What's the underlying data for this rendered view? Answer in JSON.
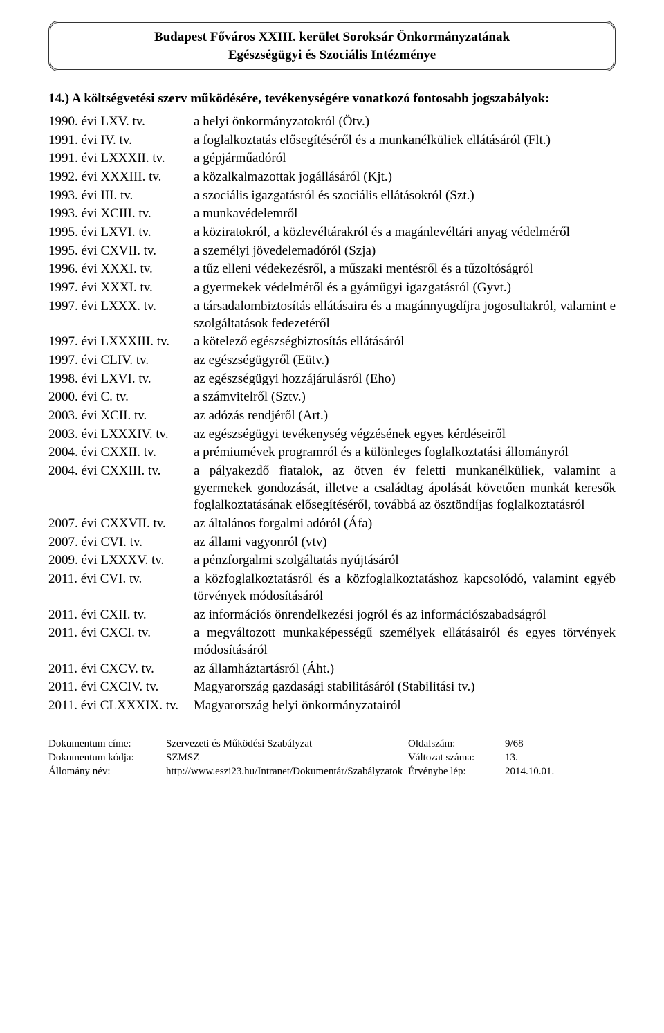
{
  "header": {
    "line1": "Budapest Főváros XXIII. kerület Soroksár Önkormányzatának",
    "line2": "Egészségügyi és Szociális Intézménye"
  },
  "section": {
    "heading": "14.) A költségvetési szerv működésére, tevékenységére vonatkozó fontosabb jogszabályok:"
  },
  "laws": [
    {
      "year": "1990. évi LXV. tv.",
      "desc": "a helyi önkormányzatokról (Ötv.)"
    },
    {
      "year": "1991. évi IV. tv.",
      "desc": "a foglalkoztatás elősegítéséről és a munkanélküliek ellátásáról (Flt.)"
    },
    {
      "year": "1991. évi LXXXII. tv.",
      "desc": "a gépjárműadóról"
    },
    {
      "year": "1992. évi XXXIII. tv.",
      "desc": "a közalkalmazottak jogállásáról (Kjt.)"
    },
    {
      "year": "1993. évi III. tv.",
      "desc": "a szociális igazgatásról és szociális ellátásokról (Szt.)"
    },
    {
      "year": "1993. évi XCIII. tv.",
      "desc": "a munkavédelemről"
    },
    {
      "year": "1995. évi LXVI. tv.",
      "desc": "a köziratokról, a közlevéltárakról és a magánlevéltári anyag védelméről"
    },
    {
      "year": "1995. évi CXVII. tv.",
      "desc": "a személyi jövedelemadóról (Szja)"
    },
    {
      "year": "1996. évi XXXI. tv.",
      "desc": "a tűz elleni védekezésről, a műszaki mentésről és a tűzoltóságról"
    },
    {
      "year": "1997. évi XXXI. tv.",
      "desc": "a gyermekek védelméről és a gyámügyi igazgatásról (Gyvt.)"
    },
    {
      "year": "1997. évi LXXX. tv.",
      "desc": "a társadalombiztosítás ellátásaira és a magánnyugdíjra jogosultakról, valamint e szolgáltatások fedezetéről"
    },
    {
      "year": "1997. évi LXXXIII. tv.",
      "desc": "a kötelező egészségbiztosítás ellátásáról"
    },
    {
      "year": "1997. évi CLIV. tv.",
      "desc": "az egészségügyről (Eütv.)"
    },
    {
      "year": "1998. évi LXVI. tv.",
      "desc": "az egészségügyi hozzájárulásról (Eho)"
    },
    {
      "year": "2000. évi C. tv.",
      "desc": "a számvitelről (Sztv.)"
    },
    {
      "year": "2003. évi XCII. tv.",
      "desc": "az adózás rendjéről (Art.)"
    },
    {
      "year": "2003. évi LXXXIV. tv.",
      "desc": "az egészségügyi tevékenység végzésének egyes kérdéseiről"
    },
    {
      "year": "2004. évi CXXII. tv.",
      "desc": "a prémiumévek programról és a különleges foglalkoztatási állományról"
    },
    {
      "year": "2004. évi CXXIII. tv.",
      "desc": "a pályakezdő fiatalok, az ötven év feletti munkanélküliek, valamint a gyermekek gondozását, illetve a családtag ápolását követően munkát keresők foglalkoztatásának elősegítéséről, továbbá az ösztöndíjas foglalkoztatásról"
    },
    {
      "year": "2007. évi CXXVII. tv.",
      "desc": "az általános forgalmi adóról (Áfa)"
    },
    {
      "year": "2007. évi CVI. tv.",
      "desc": "az állami vagyonról (vtv)"
    },
    {
      "year": "2009. évi LXXXV. tv.",
      "desc": "a pénzforgalmi szolgáltatás nyújtásáról"
    },
    {
      "year": "2011. évi CVI. tv.",
      "desc": "a közfoglalkoztatásról és a közfoglalkoztatáshoz kapcsolódó, valamint egyéb törvények módosításáról"
    },
    {
      "year": "2011. évi CXII. tv.",
      "desc": "az információs önrendelkezési jogról és az információszabadságról"
    },
    {
      "year": "2011. évi CXCI. tv.",
      "desc": "a megváltozott munkaképességű személyek ellátásairól és egyes törvények módosításáról"
    },
    {
      "year": "2011. évi CXCV. tv.",
      "desc": "az államháztartásról (Áht.)"
    },
    {
      "year": "2011. évi CXCIV. tv.",
      "desc": "Magyarország gazdasági stabilitásáról (Stabilitási tv.)"
    },
    {
      "year": "2011. évi CLXXXIX. tv.",
      "desc": "Magyarország helyi önkormányzatairól"
    }
  ],
  "footer": {
    "rows": [
      {
        "label1": "Dokumentum címe:",
        "val1": "Szervezeti és Működési Szabályzat",
        "label2": "Oldalszám:",
        "val2": "9/68"
      },
      {
        "label1": "Dokumentum kódja:",
        "val1": "SZMSZ",
        "label2": "Változat száma:",
        "val2": "13."
      },
      {
        "label1": "Állomány név:",
        "val1": "http://www.eszi23.hu/Intranet/Dokumentár/Szabályzatok",
        "label2": "Érvénybe lép:",
        "val2": "2014.10.01."
      }
    ]
  }
}
